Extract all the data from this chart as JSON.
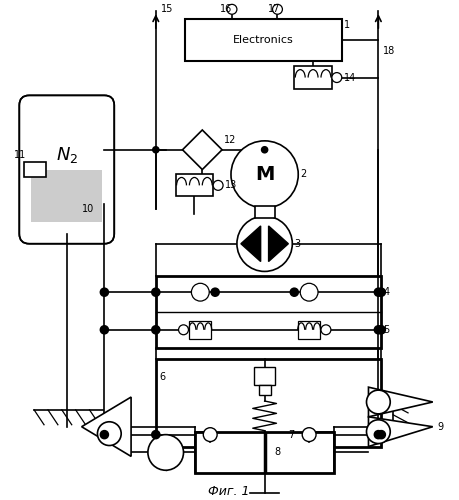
{
  "background_color": "#ffffff",
  "line_color": "#000000",
  "fig_width": 4.59,
  "fig_height": 5.0,
  "dpi": 100,
  "title": "Фиг. 1"
}
